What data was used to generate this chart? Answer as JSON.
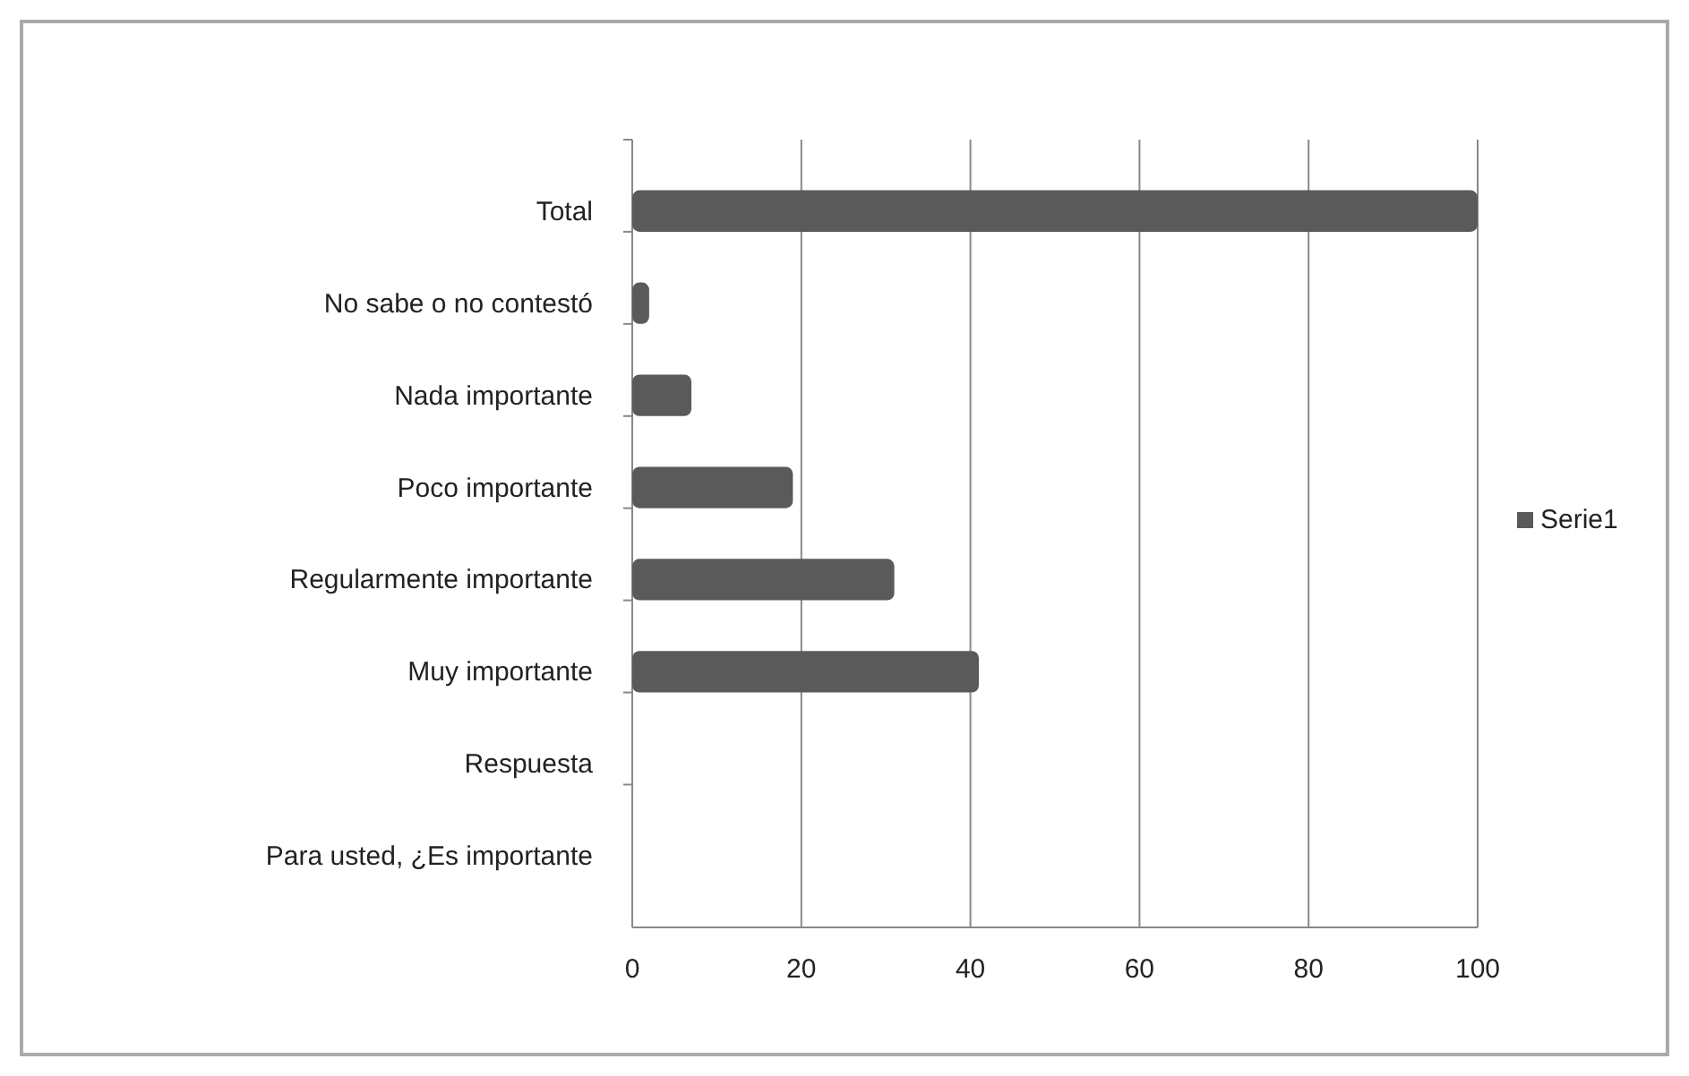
{
  "chart_data": {
    "type": "bar",
    "orientation": "horizontal",
    "categories": [
      "Total",
      "No sabe o no contestó",
      "Nada importante",
      "Poco importante",
      "Regularmente importante",
      "Muy importante",
      "Respuesta",
      "Para usted, ¿Es importante"
    ],
    "series": [
      {
        "name": "Serie1",
        "color": "#5a5a5a",
        "values": [
          100,
          2,
          7,
          19,
          31,
          41,
          null,
          null
        ]
      }
    ],
    "xlim": [
      0,
      100
    ],
    "xticks": [
      0,
      20,
      40,
      60,
      80,
      100
    ],
    "grid": "x",
    "legend": "right"
  }
}
